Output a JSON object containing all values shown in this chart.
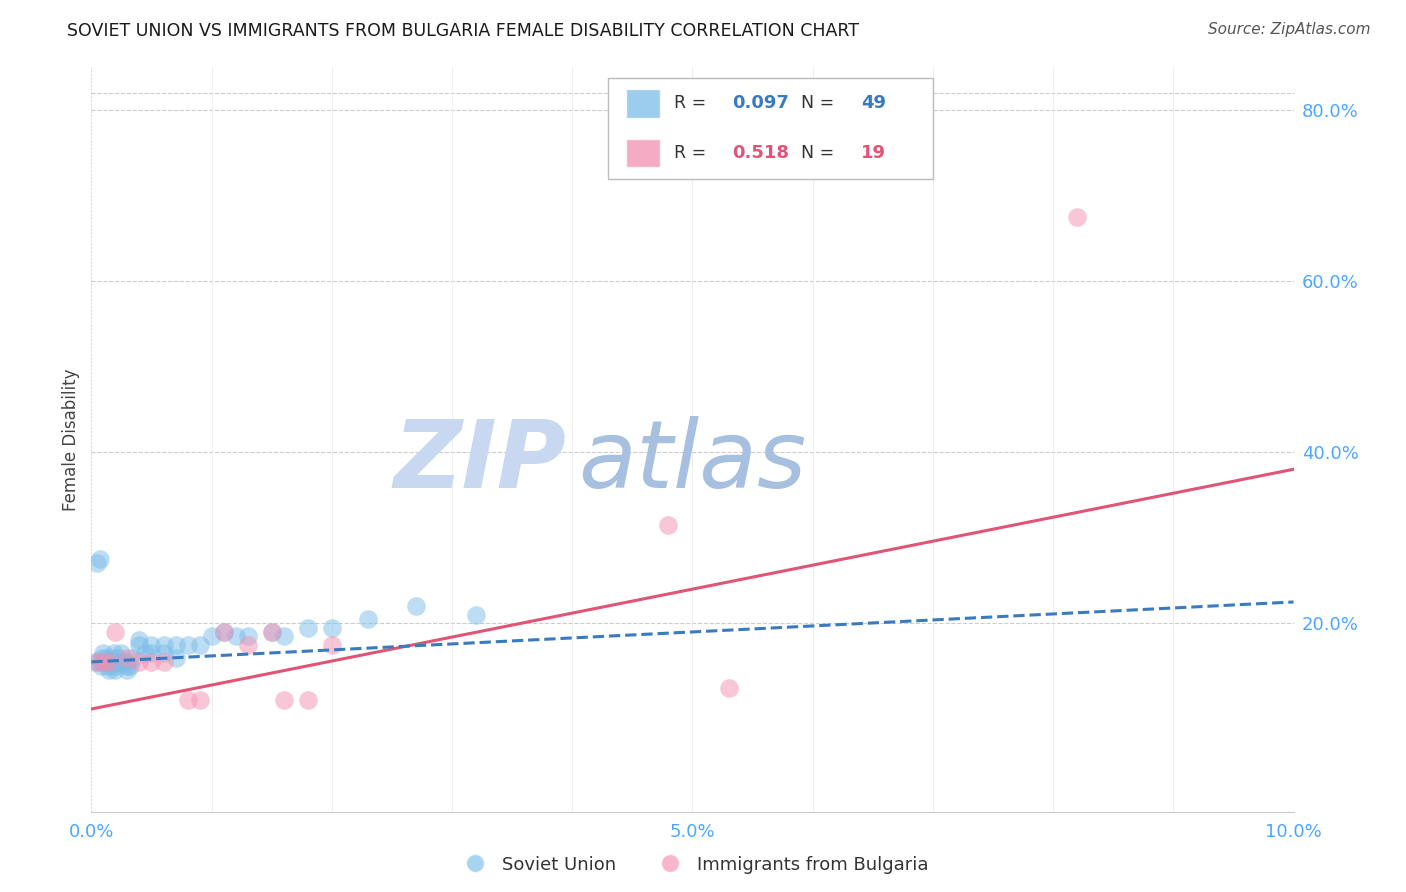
{
  "title": "SOVIET UNION VS IMMIGRANTS FROM BULGARIA FEMALE DISABILITY CORRELATION CHART",
  "source": "Source: ZipAtlas.com",
  "ylabel": "Female Disability",
  "r_soviet": 0.097,
  "n_soviet": 49,
  "r_bulgaria": 0.518,
  "n_bulgaria": 19,
  "color_soviet": "#7bbde8",
  "color_bulgaria": "#f48fb1",
  "color_soviet_line": "#3a7abf",
  "color_bulgaria_line": "#e05575",
  "watermark_zip_color": "#c5d8f0",
  "watermark_atlas_color": "#a0b8d8",
  "right_axis_color": "#4da6ff",
  "bottom_axis_color": "#4da6ff",
  "xlim": [
    0.0,
    0.1
  ],
  "ylim": [
    -0.02,
    0.85
  ],
  "yticks_right": [
    0.2,
    0.4,
    0.6,
    0.8
  ],
  "ytick_labels_right": [
    "20.0%",
    "40.0%",
    "60.0%",
    "80.0%"
  ],
  "xtick_positions": [
    0.0,
    0.01,
    0.02,
    0.03,
    0.04,
    0.05,
    0.06,
    0.07,
    0.08,
    0.09,
    0.1
  ],
  "xtick_labels": [
    "0.0%",
    "",
    "",
    "",
    "",
    "5.0%",
    "",
    "",
    "",
    "",
    "10.0%"
  ],
  "soviet_x": [
    0.0003,
    0.0005,
    0.0007,
    0.0008,
    0.0008,
    0.0009,
    0.001,
    0.001,
    0.0012,
    0.0013,
    0.0014,
    0.0015,
    0.0016,
    0.0017,
    0.0018,
    0.0019,
    0.002,
    0.002,
    0.0022,
    0.0023,
    0.0025,
    0.0027,
    0.003,
    0.003,
    0.003,
    0.0032,
    0.0035,
    0.004,
    0.004,
    0.0045,
    0.005,
    0.005,
    0.006,
    0.006,
    0.007,
    0.007,
    0.008,
    0.009,
    0.01,
    0.011,
    0.012,
    0.013,
    0.015,
    0.016,
    0.018,
    0.02,
    0.023,
    0.027,
    0.032
  ],
  "soviet_y": [
    0.155,
    0.27,
    0.275,
    0.155,
    0.15,
    0.16,
    0.165,
    0.155,
    0.16,
    0.155,
    0.15,
    0.145,
    0.155,
    0.16,
    0.155,
    0.165,
    0.15,
    0.145,
    0.16,
    0.155,
    0.165,
    0.155,
    0.155,
    0.15,
    0.145,
    0.15,
    0.16,
    0.175,
    0.18,
    0.165,
    0.175,
    0.165,
    0.175,
    0.165,
    0.175,
    0.16,
    0.175,
    0.175,
    0.185,
    0.19,
    0.185,
    0.185,
    0.19,
    0.185,
    0.195,
    0.195,
    0.205,
    0.22,
    0.21
  ],
  "bulgaria_x": [
    0.0005,
    0.001,
    0.0015,
    0.002,
    0.003,
    0.004,
    0.005,
    0.006,
    0.008,
    0.009,
    0.011,
    0.013,
    0.015,
    0.016,
    0.018,
    0.02,
    0.048,
    0.053,
    0.082
  ],
  "bulgaria_y": [
    0.155,
    0.155,
    0.155,
    0.19,
    0.16,
    0.155,
    0.155,
    0.155,
    0.11,
    0.11,
    0.19,
    0.175,
    0.19,
    0.11,
    0.11,
    0.175,
    0.315,
    0.125,
    0.675
  ],
  "bg_line_x0": 0.0,
  "bg_line_y0": 0.1,
  "bg_line_x1": 0.1,
  "bg_line_y1": 0.38,
  "sv_line_x0": 0.0,
  "sv_line_y0": 0.155,
  "sv_line_x1": 0.1,
  "sv_line_y1": 0.225
}
